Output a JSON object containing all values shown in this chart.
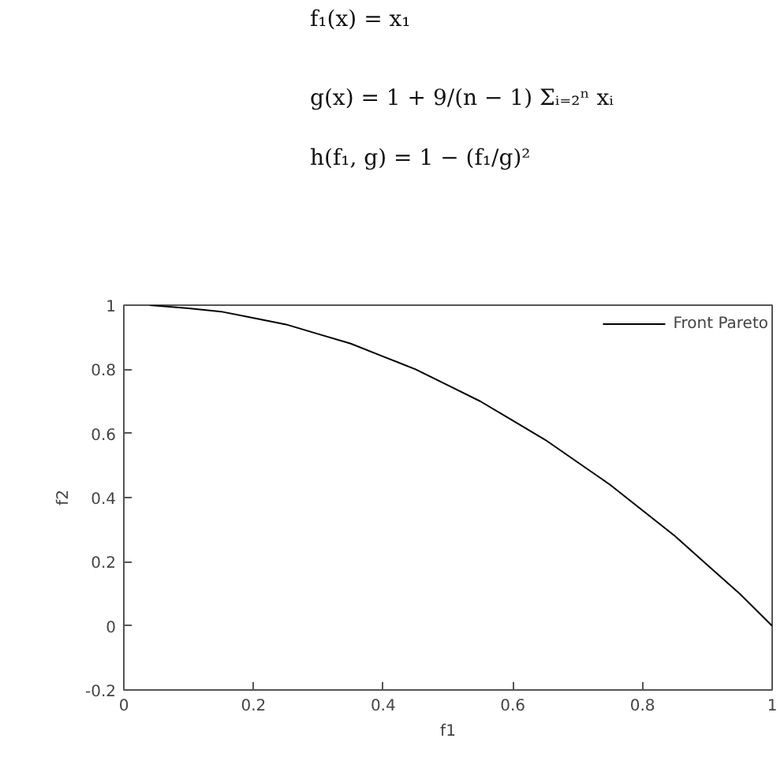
{
  "chart_data": {
    "type": "line",
    "annotations": [
      "f₁(x) = x₁",
      "g(x) = 1 + 9/(n − 1) Σᵢ₌₂ⁿ xᵢ",
      "h(f₁, g) = 1 − (f₁/g)²"
    ],
    "xlabel": "f1",
    "ylabel": "f2",
    "x": [
      0.04,
      0.1,
      0.15,
      0.2,
      0.25,
      0.3,
      0.35,
      0.4,
      0.45,
      0.5,
      0.55,
      0.6,
      0.65,
      0.7,
      0.75,
      0.8,
      0.85,
      0.9,
      0.95,
      1.0
    ],
    "series": [
      {
        "name": "Front Pareto",
        "color": "#000000",
        "values": [
          1.0,
          0.99,
          0.98,
          0.96,
          0.94,
          0.91,
          0.88,
          0.84,
          0.8,
          0.75,
          0.7,
          0.64,
          0.58,
          0.51,
          0.44,
          0.36,
          0.28,
          0.19,
          0.1,
          0.0
        ]
      }
    ],
    "xlim": [
      0,
      1
    ],
    "ylim": [
      -0.2,
      1
    ],
    "xticks": [
      0,
      0.2,
      0.4,
      0.6,
      0.8,
      1
    ],
    "yticks": [
      -0.2,
      0,
      0.2,
      0.4,
      0.6,
      0.8,
      1
    ],
    "grid": false,
    "legend": "top right",
    "marker": "none",
    "line_style": "solid"
  }
}
